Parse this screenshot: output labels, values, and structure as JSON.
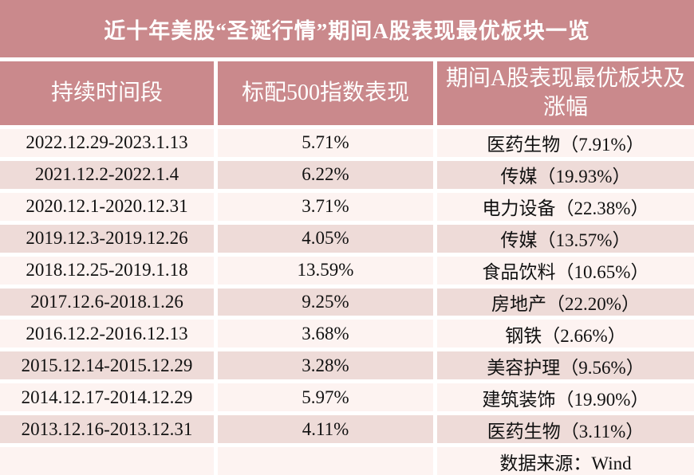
{
  "title": "近十年美股“圣诞行情”期间A股表现最优板块一览",
  "table": {
    "columns": [
      "持续时间段",
      "标配500指数表现",
      "期间A股表现最优板块及涨幅"
    ],
    "rows": [
      {
        "period": "2022.12.29-2023.1.13",
        "sp500": "5.71%",
        "best": "医药生物（7.91%）"
      },
      {
        "period": "2021.12.2-2022.1.4",
        "sp500": "6.22%",
        "best": "传媒（19.93%）"
      },
      {
        "period": "2020.12.1-2020.12.31",
        "sp500": "3.71%",
        "best": "电力设备（22.38%）"
      },
      {
        "period": "2019.12.3-2019.12.26",
        "sp500": "4.05%",
        "best": "传媒（13.57%）"
      },
      {
        "period": "2018.12.25-2019.1.18",
        "sp500": "13.59%",
        "best": "食品饮料（10.65%）"
      },
      {
        "period": "2017.12.6-2018.1.26",
        "sp500": "9.25%",
        "best": "房地产（22.20%）"
      },
      {
        "period": "2016.12.2-2016.12.13",
        "sp500": "3.68%",
        "best": "钢铁（2.66%）"
      },
      {
        "period": "2015.12.14-2015.12.29",
        "sp500": "3.28%",
        "best": "美容护理（9.56%）"
      },
      {
        "period": "2014.12.17-2014.12.29",
        "sp500": "5.97%",
        "best": "建筑装饰（19.90%）"
      },
      {
        "period": "2013.12.16-2013.12.31",
        "sp500": "4.11%",
        "best": "医药生物（3.11%）"
      }
    ],
    "source_note": "数据来源：Wind"
  },
  "colors": {
    "title_header_bg": "#ca898c",
    "row_light": "#fdf3f1",
    "row_dark": "#eedbd8",
    "divider": "#ffffff",
    "header_text": "#ffffff",
    "body_text": "#111111"
  }
}
